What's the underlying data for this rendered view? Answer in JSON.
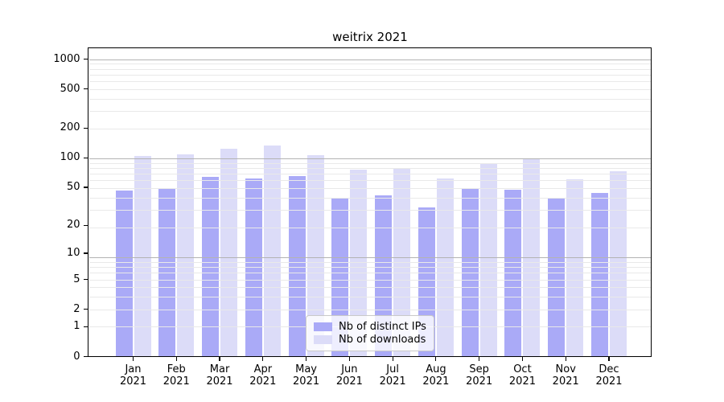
{
  "chart_data": {
    "type": "bar",
    "title": "weitrix 2021",
    "categories": [
      "Jan 2021",
      "Feb 2021",
      "Mar 2021",
      "Apr 2021",
      "May 2021",
      "Jun 2021",
      "Jul 2021",
      "Aug 2021",
      "Sep 2021",
      "Oct 2021",
      "Nov 2021",
      "Dec 2021"
    ],
    "series": [
      {
        "name": "Nb of distinct IPs",
        "color": "#aaaaf7",
        "values": [
          46,
          48,
          64,
          61,
          65,
          39,
          41,
          31,
          48,
          47,
          39,
          44
        ]
      },
      {
        "name": "Nb of downloads",
        "color": "#dcdcf8",
        "values": [
          104,
          109,
          124,
          133,
          106,
          76,
          77,
          61,
          88,
          98,
          60,
          73
        ]
      }
    ],
    "xlabel": "",
    "ylabel": "",
    "yscale": "log10(value+1)",
    "yticks": [
      0,
      1,
      2,
      5,
      10,
      20,
      50,
      100,
      200,
      500,
      1000
    ],
    "ylim": [
      0,
      1276
    ],
    "grid": "horizontal major+minor log gridlines, drawn over bars",
    "legend_position": "lower center inside plot",
    "colors": {
      "major_gridline": "#b3b3b3",
      "minor_gridline": "#e9e9e9",
      "axis": "#000000"
    }
  }
}
